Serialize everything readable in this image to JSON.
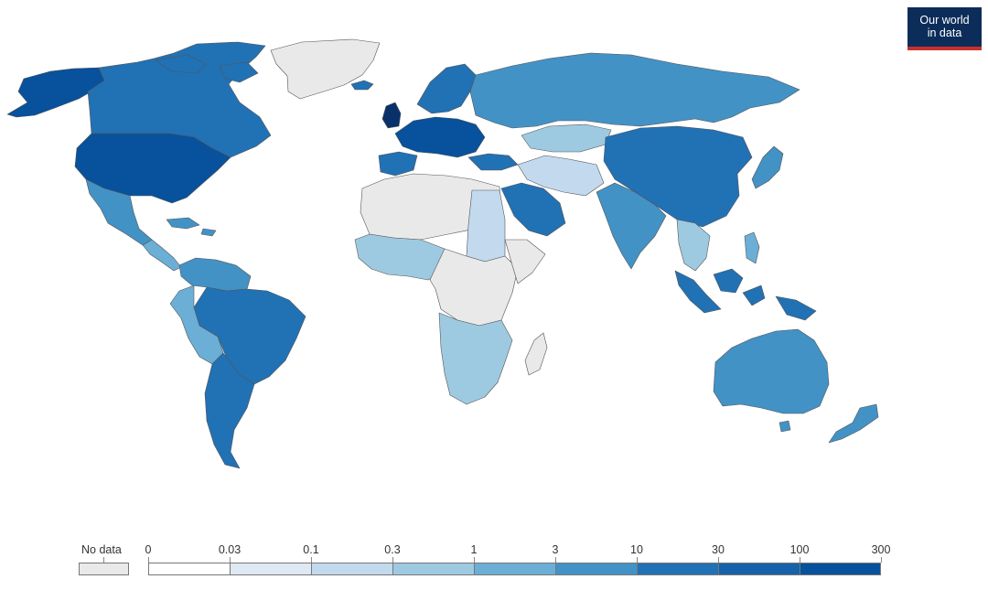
{
  "logo": {
    "line1": "Our world",
    "line2": "in data"
  },
  "legend": {
    "no_data_label": "No data",
    "no_data_color": "#e9e9e9",
    "breaks": [
      "0",
      "0.03",
      "0.1",
      "0.3",
      "1",
      "3",
      "10",
      "30",
      "100",
      "300"
    ],
    "colors": [
      "#ffffff",
      "#dfe9f4",
      "#c3d9ee",
      "#9ecae1",
      "#6baed6",
      "#4292c6",
      "#2171b5",
      "#1761aa",
      "#08519c",
      "#08306b"
    ]
  }
}
